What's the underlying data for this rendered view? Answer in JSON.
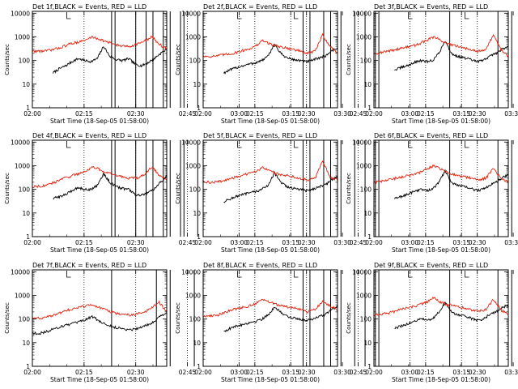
{
  "colors": {
    "events": "#000000",
    "lld": "#e8200c",
    "axis": "#000000",
    "marker": "#000000"
  },
  "shared": {
    "ylabel": "Counts/sec",
    "xlabel": "Start Time (18-Sep-05 01:58:00)",
    "x_ticks": [
      "02:00",
      "02:15",
      "02:30",
      "02:45",
      "03:00",
      "03:15",
      "03:30"
    ],
    "y_ticks": [
      "1",
      "10",
      "100",
      "1000",
      "10000"
    ],
    "x_range_minutes_after_0200": [
      0,
      39
    ],
    "y_range": [
      1,
      12000
    ],
    "y_scale": "log",
    "dotted_lines_at": [
      "02:15",
      "02:30",
      "02:45",
      "03:00",
      "03:15"
    ],
    "attenuator_marks": [
      "02:10",
      "03:16"
    ],
    "ylabel_on_left_column_only": true,
    "xlabel_under_bottom_row_only": true
  },
  "chart_data": [
    {
      "type": "line",
      "title": "Det 1f,BLACK = Events, RED = LLD",
      "series": [
        {
          "name": "Events",
          "color": "black",
          "x_start": "02:06",
          "levels": [
            30,
            45,
            60,
            90,
            120,
            100,
            90,
            120,
            400,
            150,
            110,
            100,
            120,
            70,
            60,
            80,
            120,
            200,
            300
          ]
        },
        {
          "name": "LLD",
          "color": "red",
          "x_start": "02:00",
          "levels": [
            250,
            250,
            260,
            300,
            380,
            500,
            600,
            700,
            1000,
            800,
            600,
            500,
            400,
            400,
            500,
            650,
            1000,
            500,
            300
          ]
        }
      ],
      "spikes_at": [
        "02:23",
        "02:24",
        "02:30",
        "02:33",
        "02:35",
        "02:38",
        "02:40",
        "02:43",
        "02:44",
        "02:48"
      ]
    },
    {
      "type": "line",
      "title": "Det 2f,BLACK = Events, RED = LLD",
      "series": [
        {
          "name": "Events",
          "color": "black",
          "x_start": "02:06",
          "levels": [
            30,
            40,
            50,
            60,
            70,
            80,
            100,
            150,
            500,
            200,
            130,
            110,
            100,
            90,
            100,
            130,
            150,
            250,
            350
          ]
        },
        {
          "name": "LLD",
          "color": "red",
          "x_start": "02:00",
          "levels": [
            150,
            150,
            160,
            180,
            200,
            250,
            300,
            400,
            700,
            500,
            400,
            350,
            300,
            250,
            200,
            250,
            1200,
            400,
            200
          ]
        }
      ],
      "spikes_at": [
        "02:29",
        "02:31",
        "02:35",
        "02:37",
        "02:40",
        "02:44",
        "02:47",
        "02:50",
        "02:51"
      ]
    },
    {
      "type": "line",
      "title": "Det 3f,BLACK = Events, RED = LLD",
      "series": [
        {
          "name": "Events",
          "color": "black",
          "x_start": "02:06",
          "levels": [
            40,
            50,
            60,
            80,
            100,
            90,
            100,
            200,
            700,
            200,
            150,
            130,
            110,
            90,
            100,
            150,
            200,
            300,
            400
          ]
        },
        {
          "name": "LLD",
          "color": "red",
          "x_start": "02:00",
          "levels": [
            200,
            220,
            250,
            300,
            350,
            400,
            500,
            700,
            1000,
            700,
            500,
            400,
            350,
            300,
            250,
            300,
            1200,
            300,
            150
          ]
        }
      ],
      "spikes_at": [
        "02:22",
        "02:36",
        "02:40",
        "02:47"
      ]
    },
    {
      "type": "line",
      "title": "Det 4f,BLACK = Events, RED = LLD",
      "series": [
        {
          "name": "Events",
          "color": "black",
          "x_start": "02:06",
          "levels": [
            40,
            50,
            60,
            90,
            120,
            100,
            100,
            150,
            450,
            200,
            130,
            110,
            100,
            60,
            55,
            70,
            100,
            200,
            350
          ]
        },
        {
          "name": "LLD",
          "color": "red",
          "x_start": "02:00",
          "levels": [
            130,
            140,
            150,
            200,
            280,
            350,
            450,
            550,
            900,
            700,
            500,
            400,
            350,
            300,
            300,
            400,
            900,
            400,
            250
          ]
        }
      ],
      "spikes_at": [
        "02:23",
        "02:24",
        "02:30",
        "02:33",
        "02:35",
        "02:38",
        "02:40",
        "02:43",
        "02:44",
        "02:48"
      ]
    },
    {
      "type": "line",
      "title": "Det 5f,BLACK = Events, RED = LLD",
      "series": [
        {
          "name": "Events",
          "color": "black",
          "x_start": "02:06",
          "levels": [
            30,
            40,
            50,
            60,
            70,
            80,
            100,
            150,
            500,
            200,
            130,
            110,
            100,
            90,
            100,
            130,
            150,
            250,
            350
          ]
        },
        {
          "name": "LLD",
          "color": "red",
          "x_start": "02:00",
          "levels": [
            200,
            200,
            210,
            250,
            300,
            380,
            450,
            550,
            900,
            600,
            450,
            400,
            350,
            300,
            250,
            300,
            1500,
            350,
            250
          ]
        }
      ],
      "spikes_at": [
        "02:29",
        "02:31",
        "02:35",
        "02:37",
        "02:40",
        "02:44",
        "02:47",
        "02:50",
        "02:51"
      ]
    },
    {
      "type": "line",
      "title": "Det 6f,BLACK = Events, RED = LLD",
      "series": [
        {
          "name": "Events",
          "color": "black",
          "x_start": "02:06",
          "levels": [
            40,
            50,
            60,
            80,
            100,
            90,
            100,
            200,
            600,
            200,
            150,
            130,
            110,
            90,
            100,
            150,
            200,
            300,
            400
          ]
        },
        {
          "name": "LLD",
          "color": "red",
          "x_start": "02:00",
          "levels": [
            200,
            220,
            250,
            300,
            350,
            400,
            500,
            700,
            1000,
            700,
            500,
            400,
            350,
            300,
            250,
            300,
            800,
            300,
            200
          ]
        }
      ],
      "spikes_at": [
        "02:22",
        "02:36",
        "02:40",
        "02:47"
      ]
    },
    {
      "type": "line",
      "title": "Det 7f,BLACK = Events, RED = LLD",
      "series": [
        {
          "name": "Events",
          "color": "black",
          "x_start": "02:00",
          "levels": [
            25,
            25,
            30,
            40,
            50,
            60,
            70,
            90,
            130,
            80,
            55,
            45,
            40,
            35,
            40,
            50,
            70,
            120,
            200
          ]
        },
        {
          "name": "LLD",
          "color": "red",
          "x_start": "02:00",
          "levels": [
            110,
            110,
            120,
            150,
            200,
            250,
            300,
            350,
            400,
            300,
            230,
            180,
            160,
            150,
            160,
            200,
            300,
            500,
            200
          ]
        }
      ],
      "spikes_at": [
        "02:23",
        "02:36",
        "02:40",
        "02:47"
      ]
    },
    {
      "type": "line",
      "title": "Det 8f,BLACK = Events, RED = LLD",
      "series": [
        {
          "name": "Events",
          "color": "black",
          "x_start": "02:06",
          "levels": [
            30,
            40,
            50,
            60,
            70,
            80,
            100,
            150,
            300,
            200,
            130,
            110,
            100,
            90,
            100,
            130,
            150,
            250,
            350
          ]
        },
        {
          "name": "LLD",
          "color": "red",
          "x_start": "02:00",
          "levels": [
            130,
            140,
            150,
            200,
            250,
            300,
            350,
            450,
            700,
            500,
            400,
            350,
            300,
            250,
            200,
            250,
            600,
            350,
            250
          ]
        }
      ],
      "spikes_at": [
        "02:29",
        "02:31",
        "02:35",
        "02:37",
        "02:40",
        "02:44",
        "02:47",
        "02:50",
        "02:51"
      ],
      "lld_saturation": [
        "03:04",
        "03:07"
      ]
    },
    {
      "type": "line",
      "title": "Det 9f,BLACK = Events, RED = LLD",
      "series": [
        {
          "name": "Events",
          "color": "black",
          "x_start": "02:06",
          "levels": [
            40,
            50,
            60,
            80,
            100,
            90,
            100,
            200,
            500,
            200,
            150,
            130,
            110,
            90,
            100,
            150,
            200,
            300,
            400
          ]
        },
        {
          "name": "LLD",
          "color": "red",
          "x_start": "02:00",
          "levels": [
            150,
            160,
            180,
            220,
            280,
            320,
            400,
            500,
            800,
            500,
            400,
            350,
            300,
            250,
            220,
            250,
            700,
            250,
            150
          ]
        }
      ],
      "spikes_at": [
        "02:22",
        "02:36",
        "02:40",
        "02:47"
      ]
    }
  ]
}
